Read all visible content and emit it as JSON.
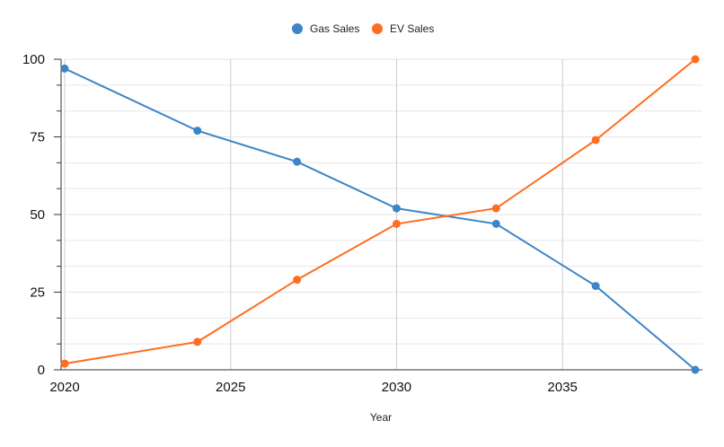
{
  "chart_data": {
    "type": "line",
    "title": "",
    "xlabel": "Year",
    "ylabel": "",
    "xlim": [
      2020,
      2039
    ],
    "ylim": [
      0,
      100
    ],
    "x_ticks": [
      2020,
      2025,
      2030,
      2035
    ],
    "y_ticks": [
      0,
      25,
      50,
      75,
      100
    ],
    "grid": true,
    "legend": "top-center",
    "series": [
      {
        "name": "Gas Sales",
        "color": "#3d85c6",
        "points": [
          [
            2020,
            97
          ],
          [
            2024,
            77
          ],
          [
            2027,
            67
          ],
          [
            2030,
            52
          ],
          [
            2033,
            47
          ],
          [
            2036,
            27
          ],
          [
            2039,
            0
          ]
        ]
      },
      {
        "name": "EV Sales",
        "color": "#ff6d22",
        "points": [
          [
            2020,
            2
          ],
          [
            2024,
            9
          ],
          [
            2027,
            29
          ],
          [
            2030,
            47
          ],
          [
            2033,
            52
          ],
          [
            2036,
            74
          ],
          [
            2039,
            100
          ]
        ]
      }
    ]
  }
}
